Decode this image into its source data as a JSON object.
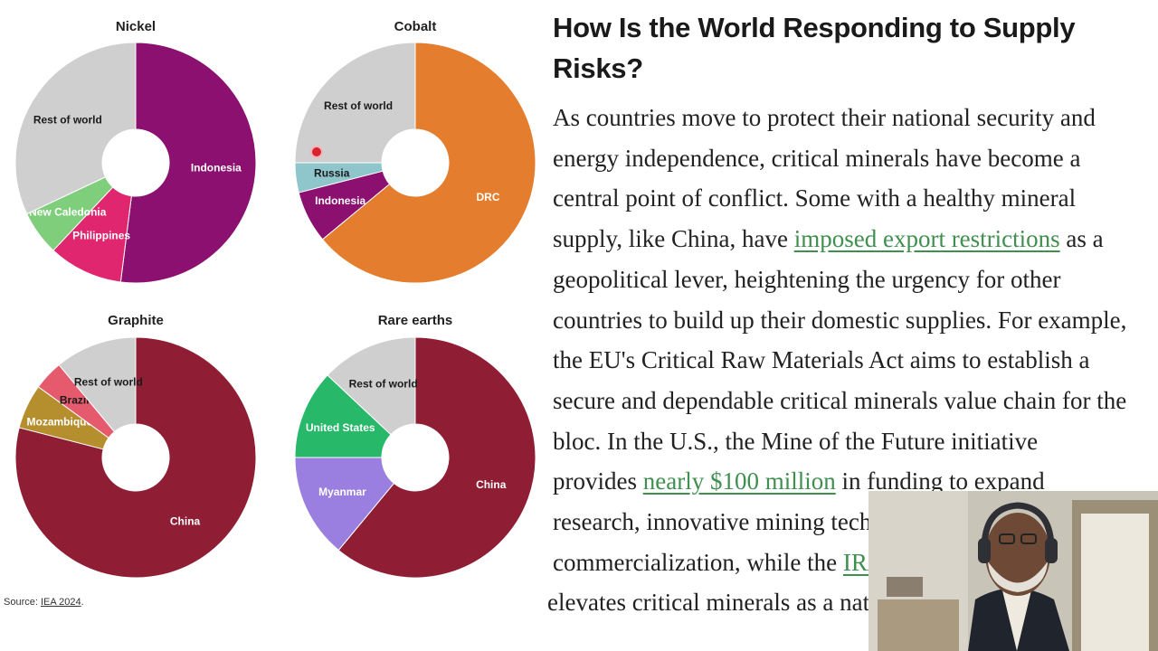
{
  "chart_data": [
    {
      "type": "pie",
      "title": "Nickel",
      "slices": [
        {
          "label": "Indonesia",
          "value": 52,
          "color": "#8b1070"
        },
        {
          "label": "Philippines",
          "value": 10,
          "color": "#e0266f"
        },
        {
          "label": "New Caledonia",
          "value": 6,
          "color": "#7fce7c"
        },
        {
          "label": "Rest of world",
          "value": 32,
          "color": "#cfcfcf"
        }
      ]
    },
    {
      "type": "pie",
      "title": "Cobalt",
      "slices": [
        {
          "label": "DRC",
          "value": 64,
          "color": "#e47e2e"
        },
        {
          "label": "Indonesia",
          "value": 7,
          "color": "#8b1070"
        },
        {
          "label": "Russia",
          "value": 4,
          "color": "#8ec6cc"
        },
        {
          "label": "Rest of world",
          "value": 25,
          "color": "#cfcfcf"
        }
      ]
    },
    {
      "type": "pie",
      "title": "Graphite",
      "slices": [
        {
          "label": "China",
          "value": 79,
          "color": "#8f1e34"
        },
        {
          "label": "Mozambique",
          "value": 6,
          "color": "#b58f2e"
        },
        {
          "label": "Brazil",
          "value": 4,
          "color": "#e65a6d"
        },
        {
          "label": "Rest of world",
          "value": 11,
          "color": "#cfcfcf"
        }
      ]
    },
    {
      "type": "pie",
      "title": "Rare earths",
      "slices": [
        {
          "label": "China",
          "value": 61,
          "color": "#8f1e34"
        },
        {
          "label": "Myanmar",
          "value": 14,
          "color": "#9b7fe0"
        },
        {
          "label": "United States",
          "value": 12,
          "color": "#27b86a"
        },
        {
          "label": "Rest of world",
          "value": 13,
          "color": "#cfcfcf"
        }
      ]
    }
  ],
  "source": {
    "prefix": "Source: ",
    "link": "IEA 2024",
    "suffix": "."
  },
  "article": {
    "heading_lines": [
      "How Is the World Responding to Supply",
      "Risks?"
    ],
    "line1": "As countries move to protect their national security and",
    "line2": "energy independence, critical minerals have become a",
    "line3": "central point of conflict. Some with a healthy mineral",
    "line4_a": "supply, like China, have ",
    "line4_link": "imposed export restrictions",
    "line4_b": " as a",
    "line5": "geopolitical lever, heightening the urgency for other",
    "line6": "countries to build up their domestic supplies. For example,",
    "line7": "the EU's Critical Raw Materials Act aims to establish a",
    "line8": "secure and dependable critical minerals value chain for the",
    "line9": "bloc. In the U.S., the Mine of the Future initiative",
    "line10_a": "provides ",
    "line10_link": "nearly $100 million",
    "line10_b": " in funding to expand",
    "line11": "research, innovative mining technologies and",
    "line12_a": "commercialization, while the ",
    "line12_link": "IRA",
    "line13": "elevates critical minerals as a national"
  }
}
